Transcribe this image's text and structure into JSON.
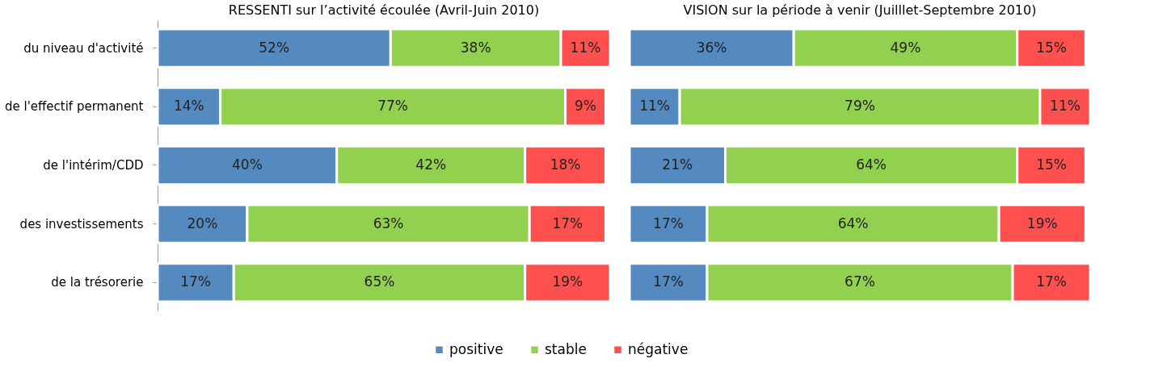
{
  "chart_data": [
    {
      "type": "bar",
      "orientation": "horizontal",
      "stacked": true,
      "title": "RESSENTI sur l’activité écoulée (Avril-Juin 2010)",
      "categories": [
        "du niveau d'activité",
        "de l'effectif permanent",
        "de l'intérim/CDD",
        "des investissements",
        "de la trésorerie"
      ],
      "legend": "bottom",
      "grid": false,
      "series": [
        {
          "name": "positive",
          "color": "#558ac0",
          "values": [
            52,
            14,
            40,
            20,
            17
          ],
          "value_labels": [
            "52%",
            "14%",
            "40%",
            "20%",
            "17%"
          ]
        },
        {
          "name": "stable",
          "color": "#92d050",
          "values": [
            38,
            77,
            42,
            63,
            65
          ],
          "value_labels": [
            "38%",
            "77%",
            "42%",
            "63%",
            "65%"
          ]
        },
        {
          "name": "négative",
          "color": "#ff5050",
          "values": [
            11,
            9,
            18,
            17,
            19
          ],
          "value_labels": [
            "11%",
            "9%",
            "18%",
            "17%",
            "19%"
          ]
        }
      ]
    },
    {
      "type": "bar",
      "orientation": "horizontal",
      "stacked": true,
      "title": "VISION sur la période à venir (Juilllet-Septembre 2010)",
      "categories": [
        null,
        null,
        null,
        null,
        null
      ],
      "tick_labels": false,
      "grid": false,
      "series": [
        {
          "name": "positive",
          "color": "#4f81bd",
          "values": [
            36,
            11,
            21,
            17,
            17
          ],
          "value_labels": [
            "36%",
            "11%",
            "21%",
            "17%",
            "17%"
          ]
        },
        {
          "name": "stable",
          "color": "#92d050",
          "values": [
            49,
            79,
            64,
            64,
            67
          ],
          "value_labels": [
            "49%",
            "79%",
            "64%",
            "64%",
            "67%"
          ]
        },
        {
          "name": "négative",
          "color": "#ff5050",
          "values": [
            15,
            11,
            15,
            19,
            17
          ],
          "value_labels": [
            "15%",
            "11%",
            "15%",
            "19%",
            "17%"
          ]
        }
      ]
    }
  ]
}
